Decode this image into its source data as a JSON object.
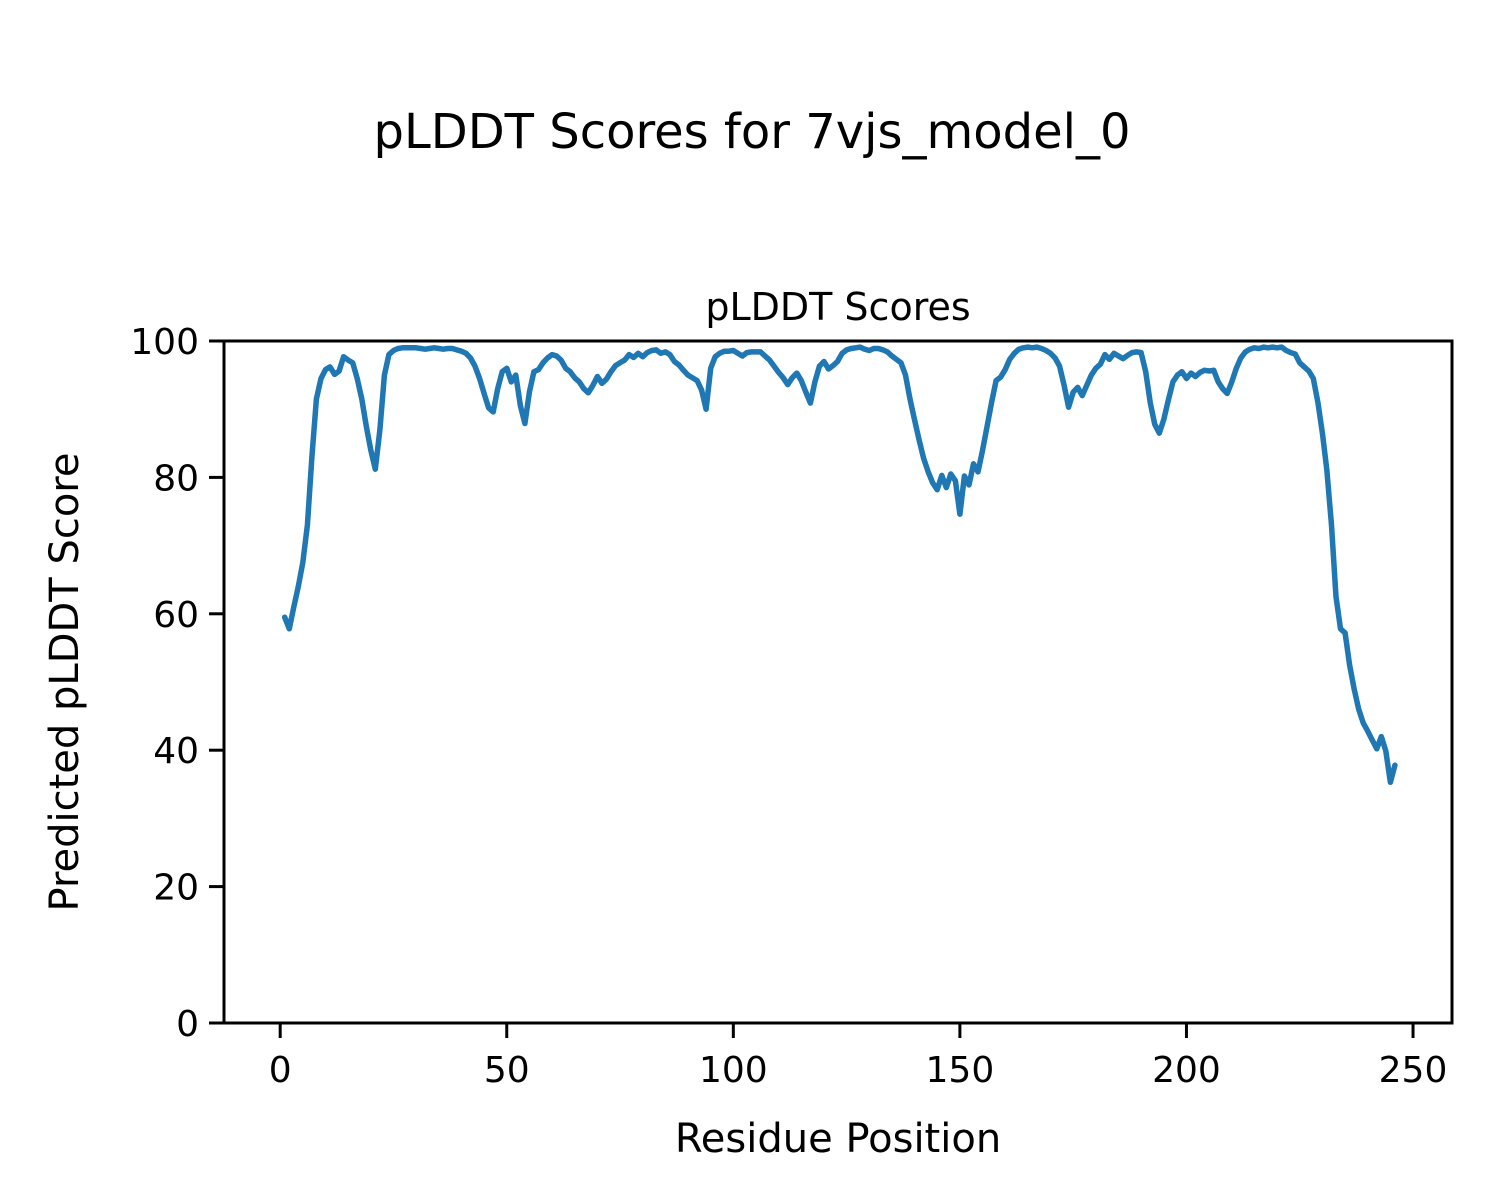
{
  "figure": {
    "suptitle": "pLDDT Scores for 7vjs_model_0"
  },
  "chart_data": {
    "type": "line",
    "title": "pLDDT Scores",
    "xlabel": "Residue Position",
    "ylabel": "Predicted pLDDT Score",
    "xlim": [
      -12.4,
      258.6
    ],
    "ylim": [
      0,
      100
    ],
    "x_ticks": [
      0,
      50,
      100,
      150,
      200,
      250
    ],
    "y_ticks": [
      0,
      20,
      40,
      60,
      80,
      100
    ],
    "grid": false,
    "line_color": "#1f77b4",
    "axis_color": "#000000",
    "series": [
      {
        "name": "pLDDT",
        "x_start": 1,
        "values": [
          59.5,
          57.8,
          61,
          64,
          67.5,
          73,
          83,
          91.5,
          94.5,
          95.8,
          96.2,
          95.1,
          95.6,
          97.7,
          97.2,
          96.8,
          94.5,
          91.5,
          87.5,
          84,
          81.2,
          87,
          95,
          98,
          98.6,
          98.9,
          99,
          99,
          99,
          99,
          98.9,
          98.8,
          98.9,
          99,
          98.9,
          98.8,
          98.9,
          98.9,
          98.7,
          98.5,
          98.2,
          97.5,
          96.3,
          94.5,
          92.3,
          90.2,
          89.6,
          93,
          95.5,
          96,
          94,
          95,
          90.5,
          87.9,
          92.5,
          95.5,
          95.8,
          96.8,
          97.5,
          98,
          97.8,
          97.2,
          96,
          95.5,
          94.6,
          94,
          93,
          92.4,
          93.5,
          94.8,
          93.8,
          94.4,
          95.5,
          96.4,
          96.8,
          97.2,
          98,
          97.6,
          98.2,
          97.7,
          98.3,
          98.6,
          98.7,
          98.2,
          98.4,
          98,
          97,
          96.5,
          95.7,
          95,
          94.6,
          94.2,
          92.8,
          90,
          96,
          97.7,
          98.2,
          98.5,
          98.5,
          98.6,
          98.2,
          97.8,
          98.3,
          98.4,
          98.4,
          98.4,
          97.8,
          97.2,
          96.3,
          95.4,
          94.6,
          93.6,
          94.6,
          95.3,
          94.2,
          92.5,
          90.9,
          94,
          96.3,
          97,
          95.9,
          96.4,
          97,
          98.2,
          98.7,
          98.9,
          99,
          99.1,
          98.8,
          98.6,
          98.9,
          98.9,
          98.7,
          98.4,
          97.8,
          97.3,
          96.8,
          95,
          91.5,
          88.4,
          85.5,
          82.8,
          80.8,
          79.2,
          78.2,
          80.3,
          78.5,
          80.5,
          79.5,
          74.6,
          80.2,
          78.9,
          82,
          80.8,
          84,
          87.5,
          91,
          94.2,
          94.7,
          95.8,
          97.3,
          98.2,
          98.8,
          99,
          99.1,
          99,
          99.1,
          98.9,
          98.6,
          98.2,
          97.5,
          96.3,
          93.5,
          90.3,
          92.5,
          93.2,
          92,
          93.5,
          95,
          96,
          96.6,
          98,
          97.3,
          98.2,
          97.8,
          97.4,
          97.9,
          98.3,
          98.4,
          98.3,
          95.5,
          91,
          87.8,
          86.5,
          88.5,
          91.3,
          94,
          95,
          95.5,
          94.5,
          95.3,
          94.8,
          95.4,
          95.7,
          95.6,
          95.7,
          94,
          93,
          92.3,
          94,
          96,
          97.5,
          98.4,
          98.8,
          99,
          98.9,
          99.1,
          99,
          99.1,
          99,
          99.1,
          98.6,
          98.3,
          98.1,
          96.8,
          96.2,
          95.6,
          94.5,
          91,
          86.5,
          81,
          73,
          62.5,
          57.8,
          57.2,
          52.5,
          49,
          46,
          44,
          42.8,
          41.5,
          40.2,
          42,
          39.9,
          35.3,
          37.8
        ]
      }
    ]
  }
}
